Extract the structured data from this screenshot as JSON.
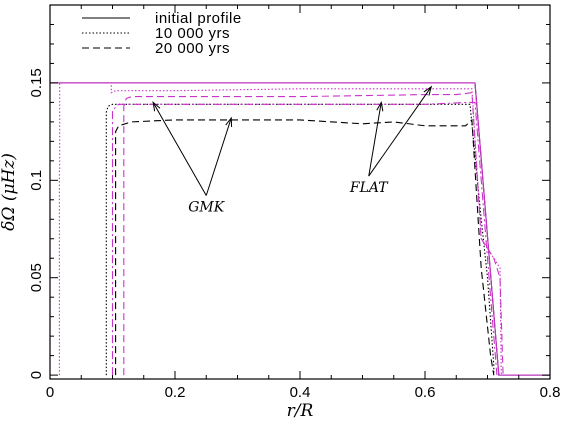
{
  "chart_data": {
    "type": "line",
    "xlabel": "r/R",
    "ylabel": "δΩ  (μHz)",
    "xlim": [
      0,
      0.8
    ],
    "ylim": [
      -0.002,
      0.19
    ],
    "xticks": [
      0,
      0.2,
      0.4,
      0.6,
      0.8
    ],
    "xtick_labels": [
      "0",
      "0.2",
      "0.4",
      "0.6",
      "0.8"
    ],
    "yticks": [
      0,
      0.05,
      0.1,
      0.15
    ],
    "ytick_labels": [
      "0",
      "0.05",
      "0.1",
      "0.15"
    ],
    "grid": false,
    "legend_position": "top-left",
    "legend": [
      {
        "label": "initial profile",
        "style": "solid"
      },
      {
        "label": "10 000  yrs",
        "style": "dotted"
      },
      {
        "label": "20 000  yrs",
        "style": "dashed"
      }
    ],
    "annotations": [
      {
        "text": "GMK",
        "arrow_targets": [
          [
            0.165,
            0.14
          ],
          [
            0.29,
            0.132
          ]
        ],
        "label_at": [
          0.25,
          0.085
        ]
      },
      {
        "text": "FLAT",
        "arrow_targets": [
          [
            0.53,
            0.14
          ],
          [
            0.61,
            0.148
          ]
        ],
        "label_at": [
          0.51,
          0.095
        ]
      }
    ],
    "series": [
      {
        "name": "initial profile",
        "model": "GMK",
        "color": "#000000",
        "style": "solid",
        "x": [
          0,
          0.68,
          0.718,
          0.72,
          0.8
        ],
        "y": [
          0.15,
          0.15,
          0,
          0,
          0
        ]
      },
      {
        "name": "10 000  yrs",
        "model": "GMK",
        "color": "#000000",
        "style": "dotted",
        "x": [
          0.09,
          0.09,
          0.093,
          0.1,
          0.15,
          0.3,
          0.5,
          0.6,
          0.65,
          0.672,
          0.69,
          0.7,
          0.71,
          0.71
        ],
        "y": [
          0,
          0.135,
          0.138,
          0.139,
          0.139,
          0.139,
          0.139,
          0.139,
          0.139,
          0.139,
          0.08,
          0.05,
          0.005,
          0
        ]
      },
      {
        "name": "20 000  yrs",
        "model": "GMK",
        "color": "#000000",
        "style": "dashed",
        "x": [
          0.105,
          0.105,
          0.11,
          0.13,
          0.2,
          0.3,
          0.4,
          0.5,
          0.55,
          0.6,
          0.65,
          0.665,
          0.675,
          0.69,
          0.705,
          0.71
        ],
        "y": [
          0,
          0.125,
          0.128,
          0.13,
          0.131,
          0.131,
          0.131,
          0.129,
          0.13,
          0.128,
          0.128,
          0.128,
          0.131,
          0.055,
          0.01,
          0
        ]
      },
      {
        "name": "initial profile",
        "model": "FLAT",
        "color": "#cc33cc",
        "style": "solid",
        "x": [
          0,
          0.68,
          0.718,
          0.72,
          0.8
        ],
        "y": [
          0.15,
          0.15,
          0,
          0,
          0
        ]
      },
      {
        "name": "10 000  yrs",
        "model": "FLAT",
        "color": "#cc33cc",
        "style": "dotted",
        "x": [
          0.015,
          0.015,
          0.0155,
          0.0155,
          0.098,
          0.098,
          0.105,
          0.11,
          0.2,
          0.4,
          0.6,
          0.65,
          0.675,
          0.69,
          0.71,
          0.72,
          0.722
        ],
        "y": [
          0,
          0.105,
          0.105,
          0.15,
          0.15,
          0.145,
          0.146,
          0.146,
          0.146,
          0.147,
          0.147,
          0.147,
          0.147,
          0.07,
          0.06,
          0.055,
          0
        ]
      },
      {
        "name": "20 000  yrs",
        "model": "FLAT",
        "color": "#cc33cc",
        "style": "dashed",
        "x": [
          0.118,
          0.118,
          0.122,
          0.13,
          0.2,
          0.4,
          0.6,
          0.65,
          0.675,
          0.69,
          0.71,
          0.72,
          0.725
        ],
        "y": [
          0,
          0.138,
          0.142,
          0.143,
          0.143,
          0.143,
          0.144,
          0.144,
          0.145,
          0.07,
          0.06,
          0.05,
          0
        ]
      },
      {
        "name": "",
        "model": "FLAT-mid",
        "color": "#cc33cc",
        "style": "dashdot",
        "x": [
          0.1,
          0.1,
          0.11,
          0.2,
          0.4,
          0.6,
          0.67,
          0.68,
          0.7,
          0.715
        ],
        "y": [
          0,
          0.136,
          0.139,
          0.139,
          0.139,
          0.139,
          0.14,
          0.14,
          0.06,
          0
        ]
      }
    ]
  }
}
